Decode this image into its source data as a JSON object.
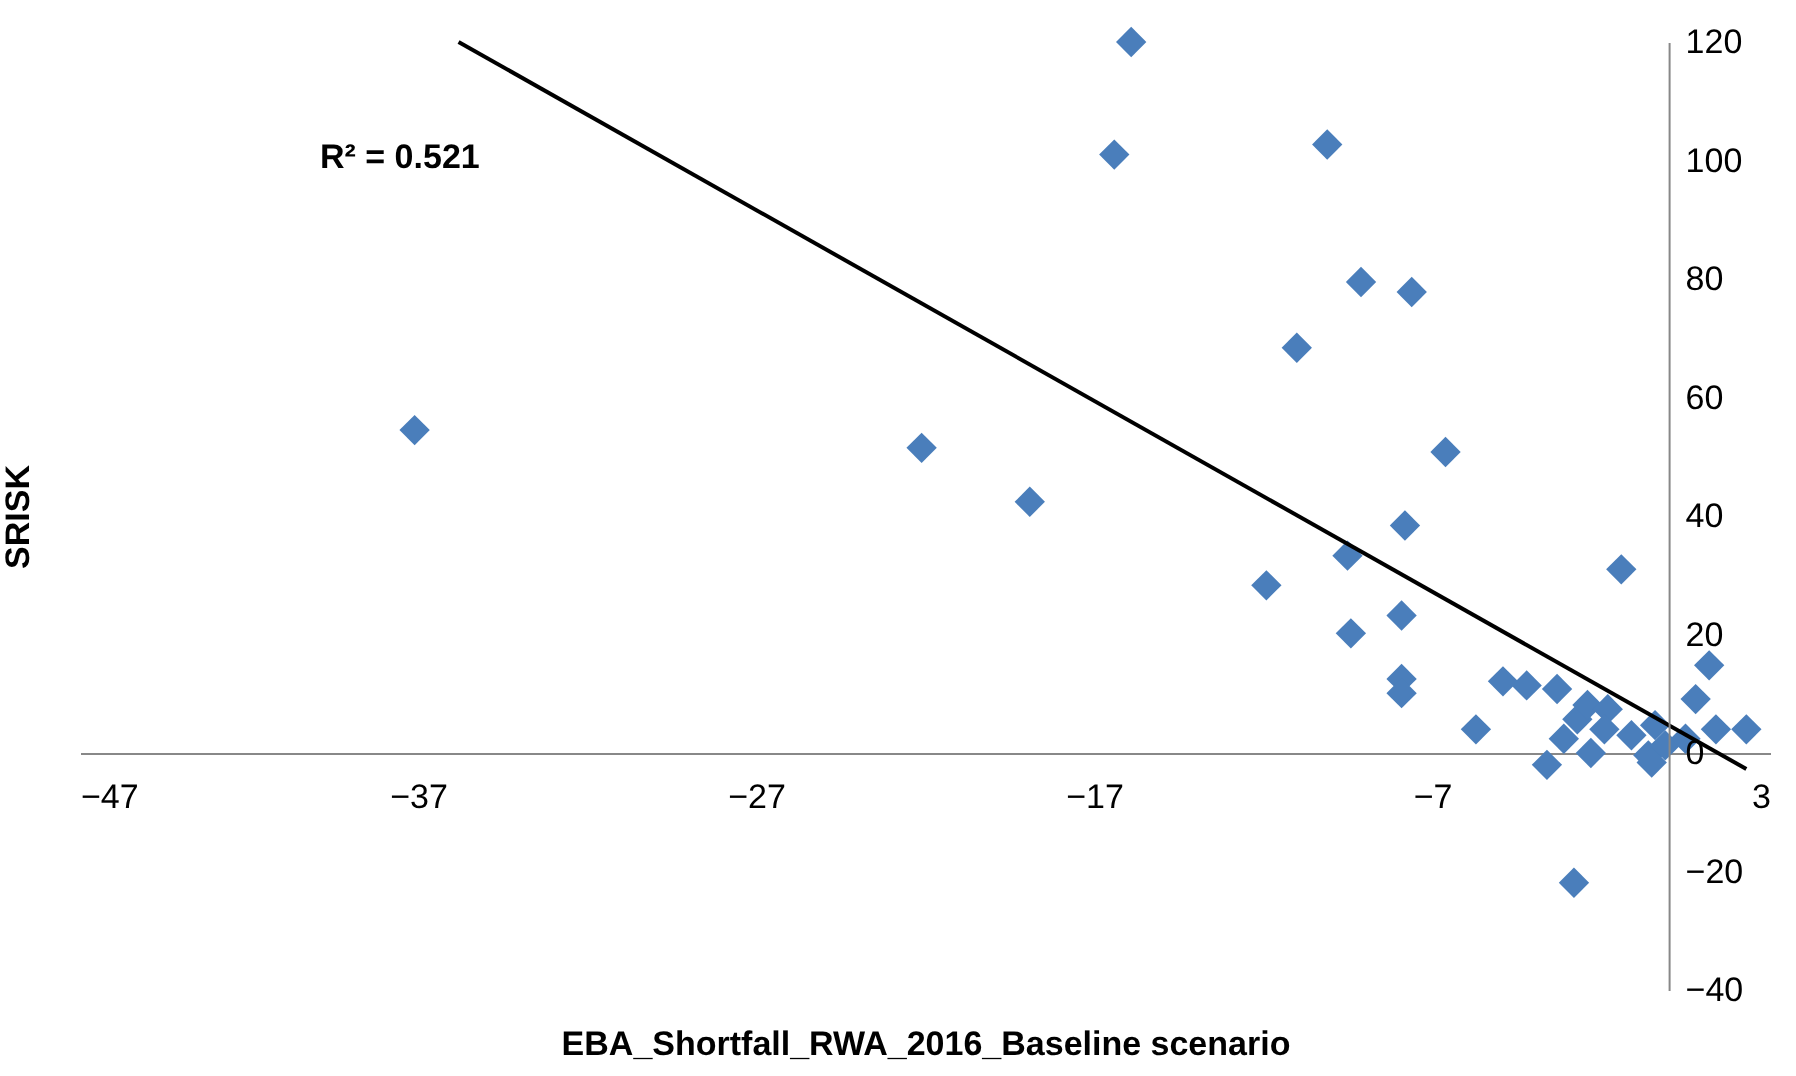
{
  "chart_data": {
    "type": "scatter",
    "xlabel": "EBA_Shortfall_RWA_2016_Baseline scenario",
    "ylabel": "SRISK",
    "xlim": [
      -47,
      3
    ],
    "xticks": [
      -47,
      -37,
      -27,
      -17,
      -7,
      3
    ],
    "ylim": [
      -40,
      120
    ],
    "yticks": [
      -40,
      -20,
      0,
      20,
      40,
      60,
      80,
      100,
      120
    ],
    "grid": false,
    "marker": "diamond",
    "annotations": [
      "R² = 0.521"
    ],
    "series": [
      {
        "color": "#4a7ebb",
        "x": [
          -37.1,
          -22.1,
          -18.9,
          -15.9,
          -16.4,
          -10.1,
          -11.0,
          -9.1,
          -7.6,
          -6.6,
          -11.9,
          -9.5,
          -7.8,
          -7.9,
          -9.4,
          -7.9,
          -7.9,
          -1.4,
          -5.7,
          -4.9,
          -4.2,
          -3.3,
          -3.6,
          -2.8,
          -2.7,
          -2.4,
          -1.8,
          -3.1,
          -2.3,
          -1.9,
          -1.1,
          -0.6,
          -0.4,
          -0.5,
          -0.1,
          0.5,
          0.8,
          1.2,
          1.4,
          2.3
        ],
        "values": [
          54.5,
          51.5,
          42.4,
          120,
          101,
          102.7,
          68.4,
          79.5,
          77.8,
          50.8,
          28.3,
          33.3,
          38.4,
          23.2,
          20.2,
          12.5,
          10.1,
          31,
          4.0,
          12.1,
          11.4,
          10.8,
          -2.0,
          -21.9,
          5.7,
          8.1,
          7.4,
          2.4,
          0,
          4,
          3,
          -0.4,
          4.7,
          -1.6,
          1.3,
          2.4,
          9.1,
          14.8,
          4.0,
          4.0
        ]
      },
      {
        "type": "line",
        "color": "#000000",
        "x": [
          -35.8,
          2.3
        ],
        "values": [
          120,
          -2.7
        ],
        "marker": "none"
      }
    ]
  }
}
